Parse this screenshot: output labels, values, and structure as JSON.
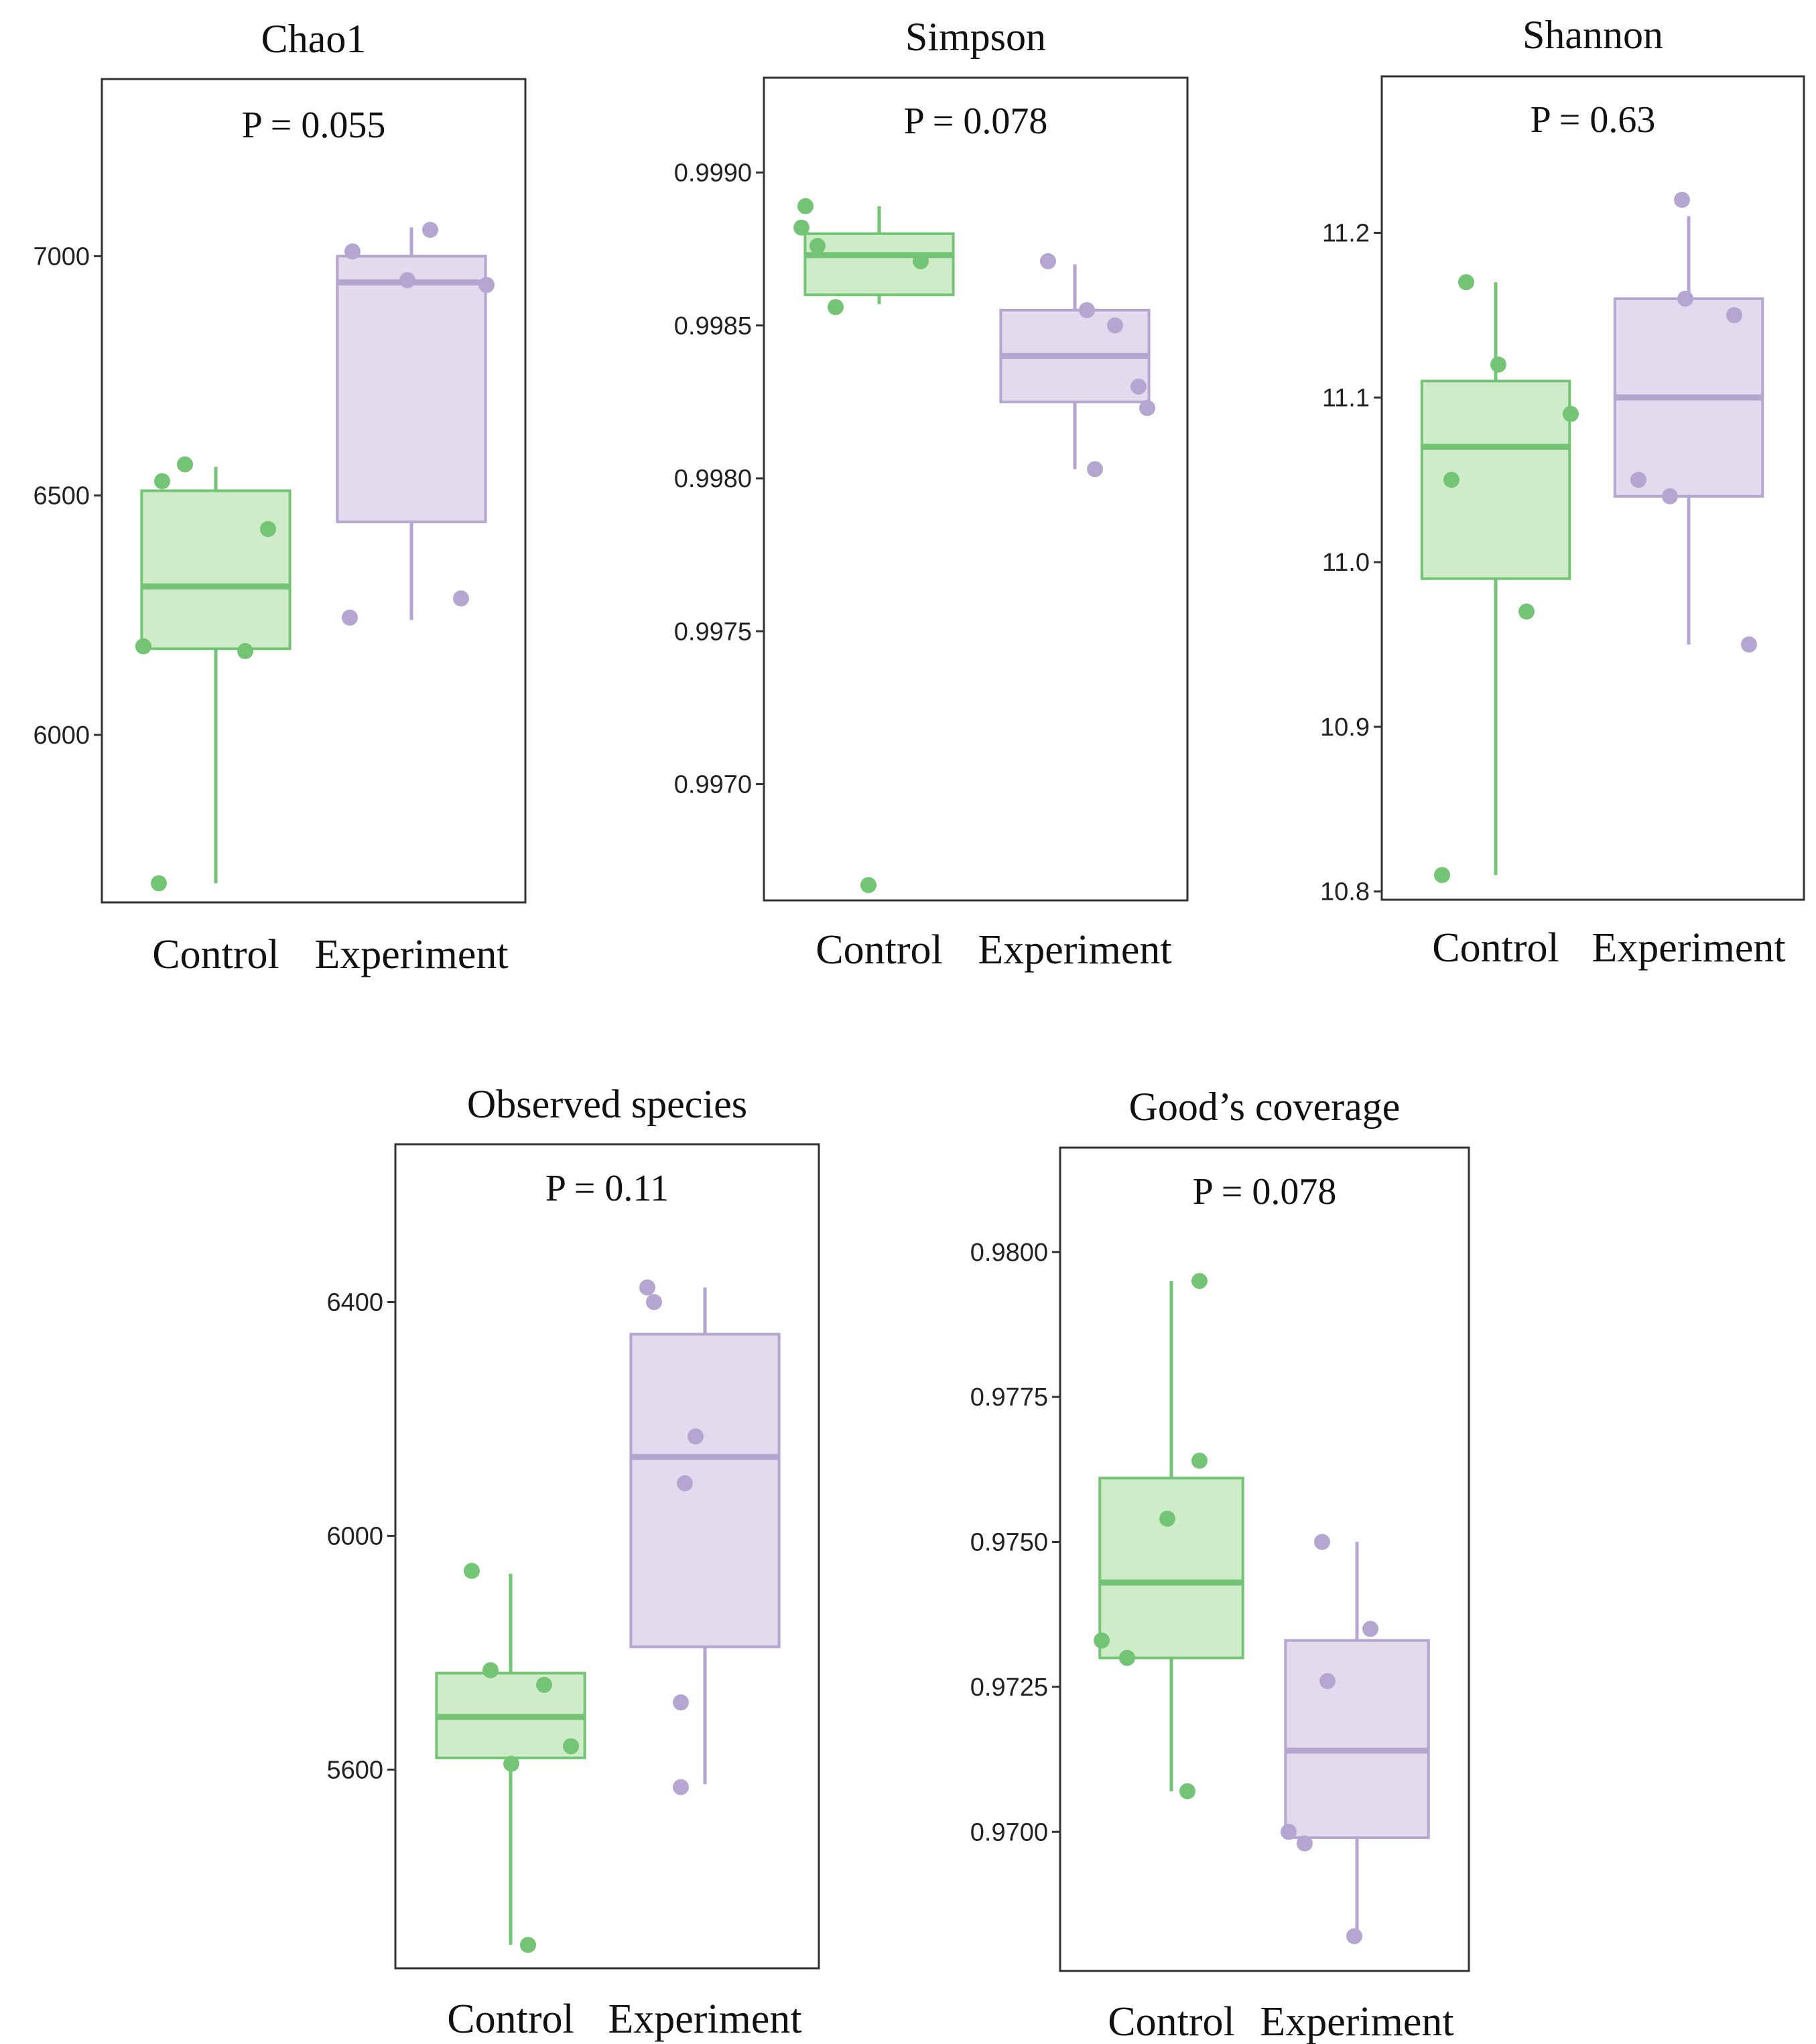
{
  "colors": {
    "control": "#74c476",
    "experiment": "#b5a6d1",
    "control_fill": "#c7e9c0",
    "experiment_fill": "#ddd5ea"
  },
  "chart_data": [
    {
      "type": "box",
      "title": "Chao1",
      "annotation": "P = 0.055",
      "categories": [
        "Control",
        "Experiment"
      ],
      "ylim": [
        5650,
        7370
      ],
      "yticks": [
        6000,
        6500,
        7000
      ],
      "ytick_labels": [
        "6000",
        "6500",
        "7000"
      ],
      "boxes": [
        {
          "group": "Control",
          "q1": 6180,
          "median": 6310,
          "q3": 6510,
          "whisker_low": 5690,
          "whisker_high": 6560
        },
        {
          "group": "Experiment",
          "q1": 6445,
          "median": 6945,
          "q3": 7000,
          "whisker_low": 6240,
          "whisker_high": 7060
        }
      ],
      "points": [
        {
          "group": "Control",
          "values": [
            6530,
            6565,
            6430,
            6185,
            6175,
            5690
          ]
        },
        {
          "group": "Experiment",
          "values": [
            7010,
            7055,
            6950,
            6940,
            6285,
            6245
          ]
        }
      ]
    },
    {
      "type": "box",
      "title": "Simpson",
      "annotation": "P = 0.078",
      "categories": [
        "Control",
        "Experiment"
      ],
      "ylim": [
        0.99662,
        0.99931
      ],
      "yticks": [
        0.997,
        0.9975,
        0.998,
        0.9985,
        0.999
      ],
      "ytick_labels": [
        "0.9970",
        "0.9975",
        "0.9980",
        "0.9985",
        "0.9990"
      ],
      "boxes": [
        {
          "group": "Control",
          "q1": 0.9986,
          "median": 0.99873,
          "q3": 0.9988,
          "whisker_low": 0.99857,
          "whisker_high": 0.99889
        },
        {
          "group": "Experiment",
          "q1": 0.99825,
          "median": 0.9984,
          "q3": 0.99855,
          "whisker_low": 0.99803,
          "whisker_high": 0.9987
        }
      ],
      "points": [
        {
          "group": "Control",
          "values": [
            0.99889,
            0.99882,
            0.99876,
            0.99871,
            0.99856,
            0.99667
          ]
        },
        {
          "group": "Experiment",
          "values": [
            0.99871,
            0.99855,
            0.9985,
            0.9983,
            0.99823,
            0.99803
          ]
        }
      ]
    },
    {
      "type": "box",
      "title": "Shannon",
      "annotation": "P = 0.63",
      "categories": [
        "Control",
        "Experiment"
      ],
      "ylim": [
        10.795,
        11.295
      ],
      "yticks": [
        10.8,
        10.9,
        11.0,
        11.1,
        11.2
      ],
      "ytick_labels": [
        "10.8",
        "10.9",
        "11.0",
        "11.1",
        "11.2"
      ],
      "boxes": [
        {
          "group": "Control",
          "q1": 10.99,
          "median": 11.07,
          "q3": 11.11,
          "whisker_low": 10.81,
          "whisker_high": 11.17
        },
        {
          "group": "Experiment",
          "q1": 11.04,
          "median": 11.1,
          "q3": 11.16,
          "whisker_low": 10.95,
          "whisker_high": 11.21
        }
      ],
      "points": [
        {
          "group": "Control",
          "values": [
            11.17,
            11.12,
            11.09,
            11.05,
            10.97,
            10.81
          ]
        },
        {
          "group": "Experiment",
          "values": [
            11.22,
            11.16,
            11.15,
            11.05,
            11.04,
            10.95
          ]
        }
      ]
    },
    {
      "type": "box",
      "title": "Observed species",
      "annotation": "P = 0.11",
      "categories": [
        "Control",
        "Experiment"
      ],
      "ylim": [
        5260,
        6670
      ],
      "yticks": [
        5600,
        6000,
        6400
      ],
      "ytick_labels": [
        "5600",
        "6000",
        "6400"
      ],
      "boxes": [
        {
          "group": "Control",
          "q1": 5620,
          "median": 5690,
          "q3": 5765,
          "whisker_low": 5300,
          "whisker_high": 5935
        },
        {
          "group": "Experiment",
          "q1": 5810,
          "median": 6135,
          "q3": 6345,
          "whisker_low": 5575,
          "whisker_high": 6425
        }
      ],
      "points": [
        {
          "group": "Control",
          "values": [
            5940,
            5770,
            5745,
            5640,
            5610,
            5300
          ]
        },
        {
          "group": "Experiment",
          "values": [
            6425,
            6400,
            6170,
            6090,
            5715,
            5570
          ]
        }
      ]
    },
    {
      "type": "box",
      "title": "Good’s coverage",
      "annotation": "P = 0.078",
      "categories": [
        "Control",
        "Experiment"
      ],
      "ylim": [
        0.9676,
        0.9818
      ],
      "yticks": [
        0.97,
        0.9725,
        0.975,
        0.9775,
        0.98
      ],
      "ytick_labels": [
        "0.9700",
        "0.9725",
        "0.9750",
        "0.9775",
        "0.9800"
      ],
      "boxes": [
        {
          "group": "Control",
          "q1": 0.973,
          "median": 0.9743,
          "q3": 0.9761,
          "whisker_low": 0.9707,
          "whisker_high": 0.9795
        },
        {
          "group": "Experiment",
          "q1": 0.9699,
          "median": 0.9714,
          "q3": 0.9733,
          "whisker_low": 0.9682,
          "whisker_high": 0.975
        }
      ],
      "points": [
        {
          "group": "Control",
          "values": [
            0.9795,
            0.9764,
            0.9754,
            0.9733,
            0.973,
            0.9707
          ]
        },
        {
          "group": "Experiment",
          "values": [
            0.975,
            0.9735,
            0.9726,
            0.97,
            0.9698,
            0.9682
          ]
        }
      ]
    }
  ]
}
